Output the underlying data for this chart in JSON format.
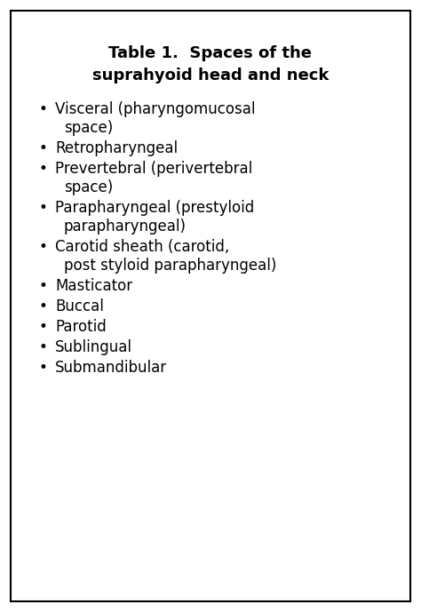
{
  "title_line1": "Table 1.  Spaces of the",
  "title_line2": "suprahyoid head and neck",
  "bullet_items": [
    [
      "Visceral (pharyngomucosal",
      "space)"
    ],
    [
      "Retropharyngeal"
    ],
    [
      "Prevertebral (perivertebral",
      "space)"
    ],
    [
      "Parapharyngeal (prestyloid",
      "parapharyngeal)"
    ],
    [
      "Carotid sheath (carotid,",
      "post styloid parapharyngeal)"
    ],
    [
      "Masticator"
    ],
    [
      "Buccal"
    ],
    [
      "Parotid"
    ],
    [
      "Sublingual"
    ],
    [
      "Submandibular"
    ]
  ],
  "background_color": "#ffffff",
  "border_color": "#000000",
  "text_color": "#000000",
  "title_fontsize": 13.0,
  "body_fontsize": 12.0,
  "fig_width": 4.74,
  "fig_height": 6.89,
  "dpi": 100
}
